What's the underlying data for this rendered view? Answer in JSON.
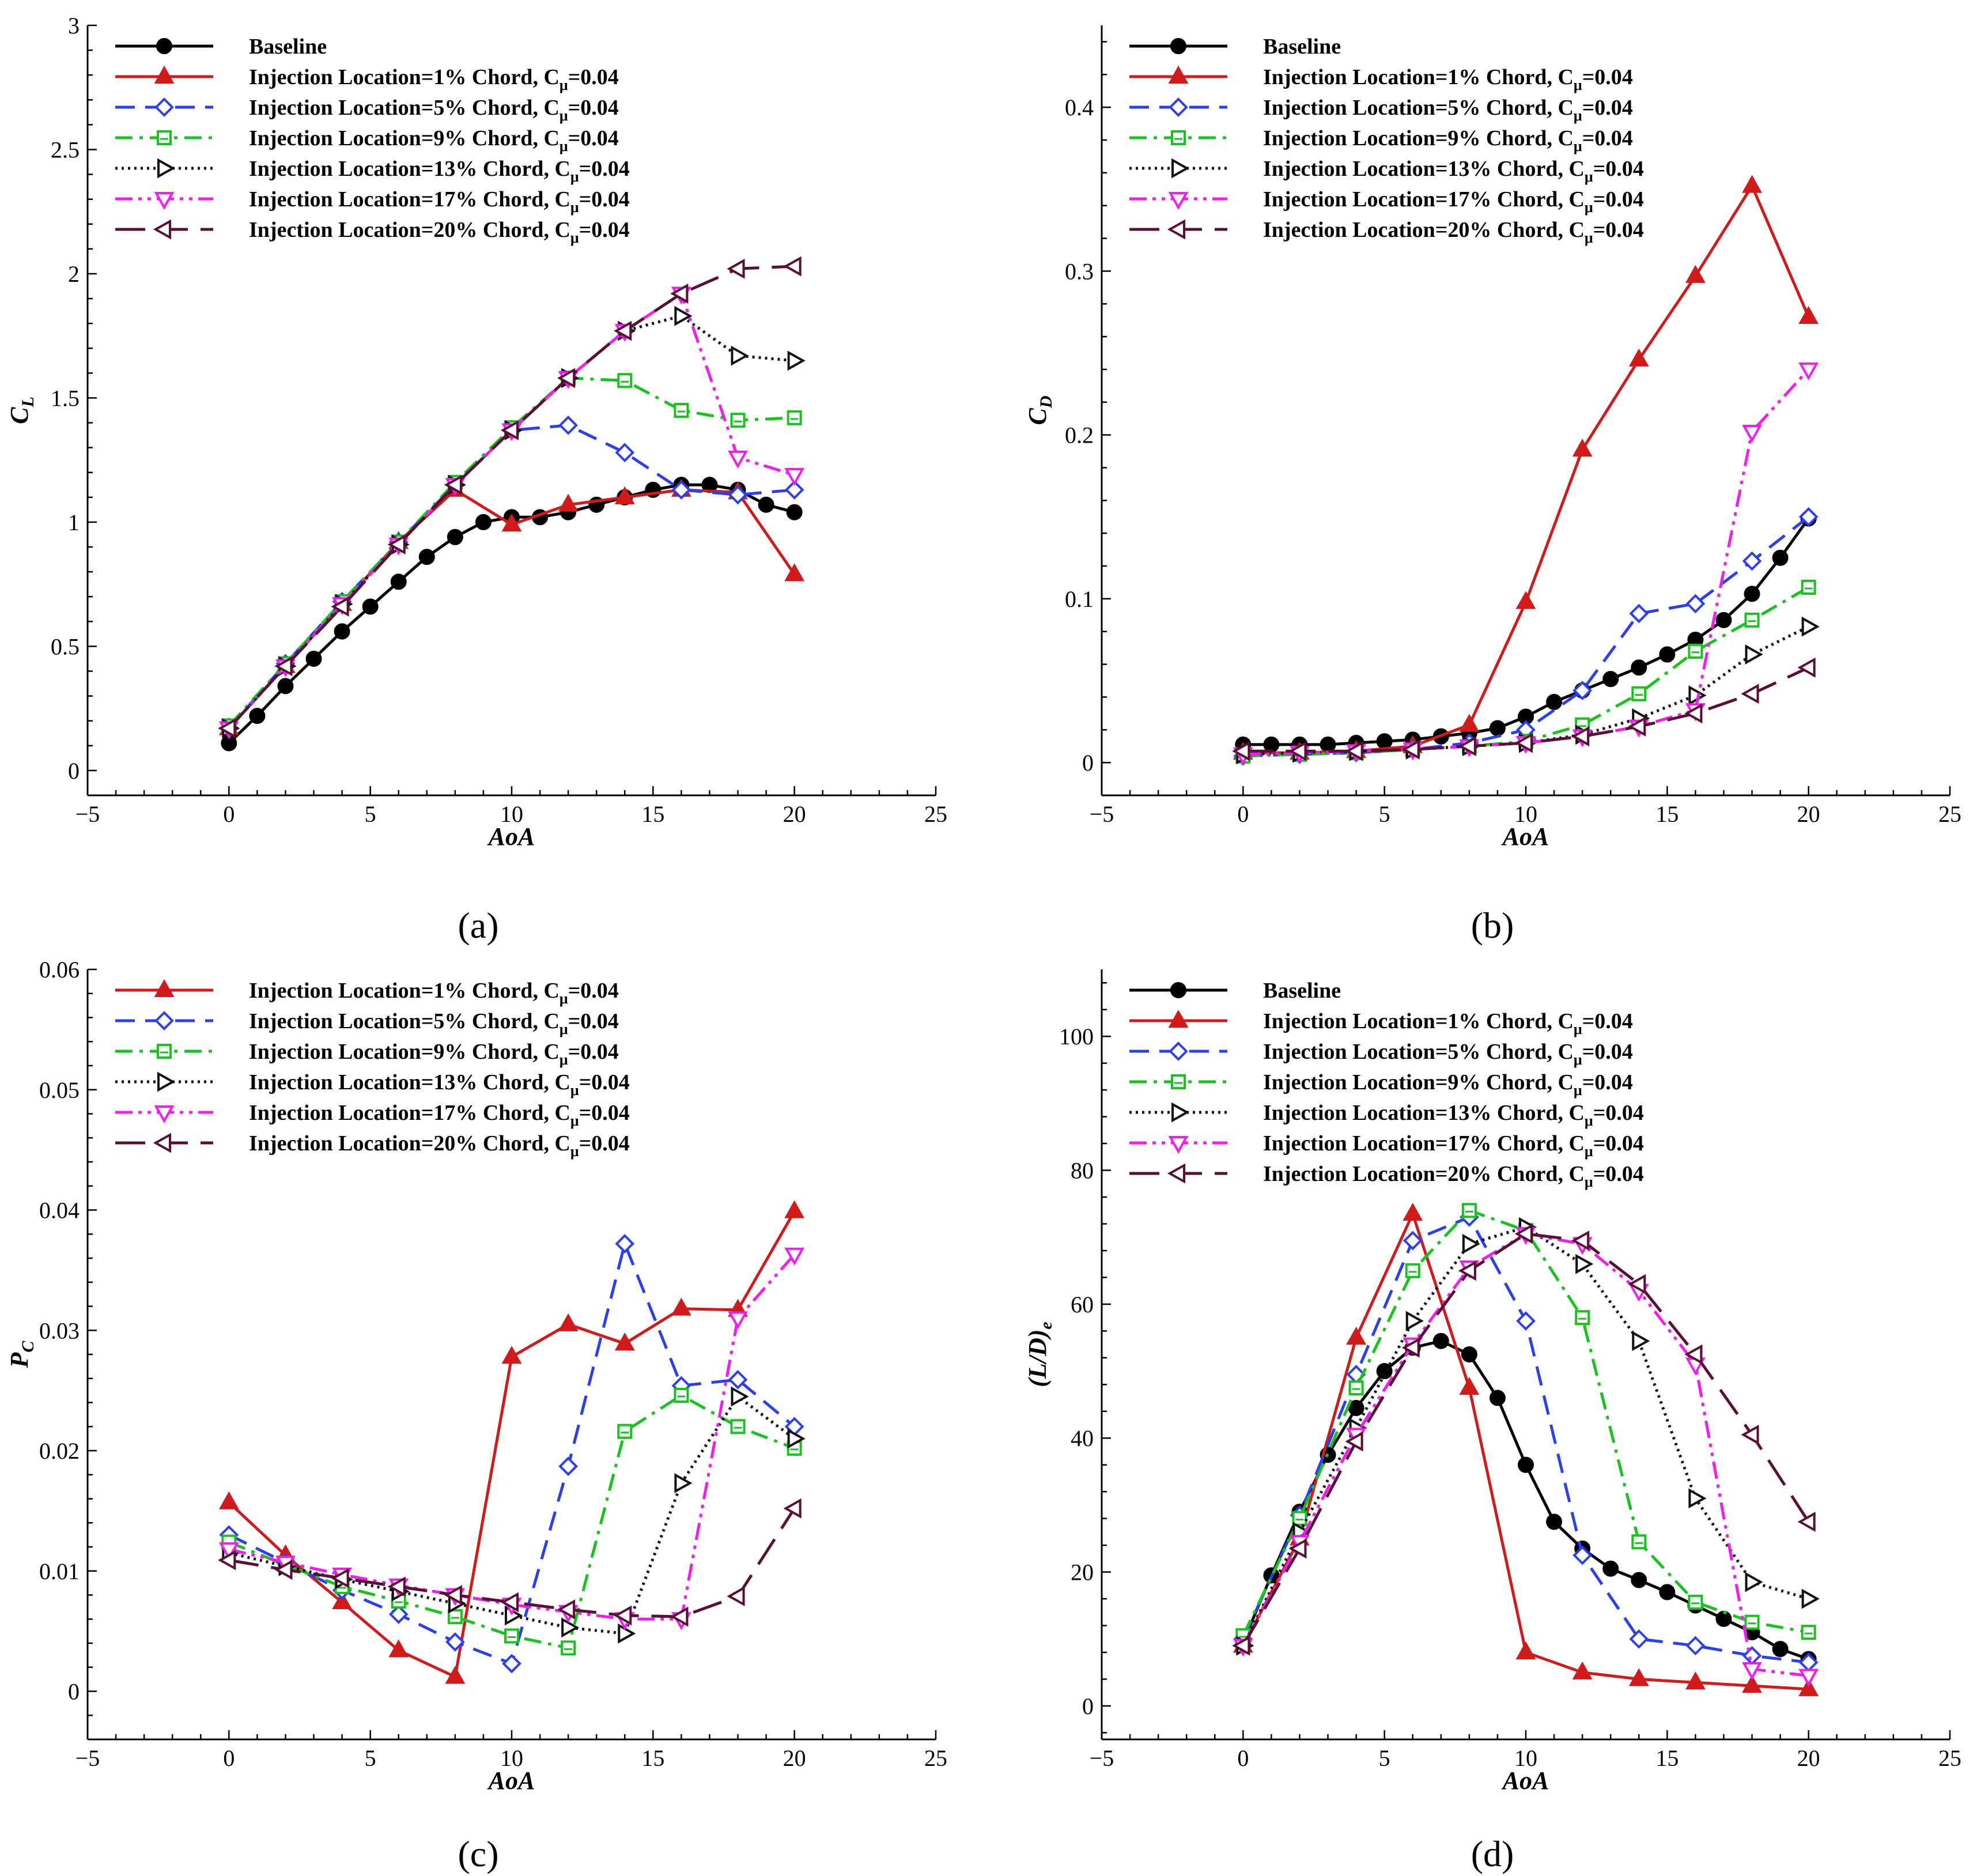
{
  "figure": {
    "panels": [
      {
        "id": "a",
        "caption": "(a)",
        "ylabel": "C",
        "ylabel_sub": "L",
        "ylabel_tail": ""
      },
      {
        "id": "b",
        "caption": "(b)",
        "ylabel": "C",
        "ylabel_sub": "D",
        "ylabel_tail": ""
      },
      {
        "id": "c",
        "caption": "(c)",
        "ylabel": "P",
        "ylabel_sub": "C",
        "ylabel_tail": ""
      },
      {
        "id": "d",
        "caption": "(d)",
        "ylabel": "(L/D)",
        "ylabel_sub": "e",
        "ylabel_tail": ""
      }
    ]
  },
  "series_styles": {
    "baseline": {
      "label_main": "Baseline",
      "label_sub": "",
      "label_tail": "",
      "color": "#000000",
      "dash": "",
      "marker": "circle-filled"
    },
    "inj1": {
      "label_main": "Injection Location=1% Chord, C",
      "label_sub": "μ",
      "label_tail": "=0.04",
      "color": "#d11a1a",
      "dash": "",
      "marker": "triangle-up-filled"
    },
    "inj5": {
      "label_main": "Injection Location=5% Chord, C",
      "label_sub": "μ",
      "label_tail": "=0.04",
      "color": "#2a3ff0",
      "dash": "dash",
      "marker": "diamond-open"
    },
    "inj9": {
      "label_main": "Injection Location=9% Chord, C",
      "label_sub": "μ",
      "label_tail": "=0.04",
      "color": "#16c41d",
      "dash": "dashdot",
      "marker": "square-open"
    },
    "inj13": {
      "label_main": "Injection Location=13% Chord, C",
      "label_sub": "μ",
      "label_tail": "=0.04",
      "color": "#111111",
      "dash": "dot",
      "marker": "triangle-right-open"
    },
    "inj17": {
      "label_main": "Injection Location=17% Chord, C",
      "label_sub": "μ",
      "label_tail": "=0.04",
      "color": "#f21cf2",
      "dash": "dashdotdot",
      "marker": "triangle-down-open"
    },
    "inj20": {
      "label_main": "Injection Location=20% Chord, C",
      "label_sub": "μ",
      "label_tail": "=0.04",
      "color": "#5b0d33",
      "dash": "longdash",
      "marker": "triangle-left-open"
    }
  },
  "chart_data": [
    {
      "type": "line",
      "panel": "a",
      "xlabel": "AoA",
      "ylabel": "C_L",
      "xlim": [
        -5,
        25
      ],
      "ylim": [
        -0.1,
        3
      ],
      "xticks": [
        -5,
        0,
        5,
        10,
        15,
        20,
        25
      ],
      "xtick_labels": [
        "−5",
        "0",
        "5",
        "10",
        "15",
        "20",
        "25"
      ],
      "yticks": [
        0,
        0.5,
        1,
        1.5,
        2,
        2.5,
        3
      ],
      "ytick_labels": [
        "0",
        "0.5",
        "1",
        "1.5",
        "2",
        "2.5",
        "3"
      ],
      "legend": [
        "baseline",
        "inj1",
        "inj5",
        "inj9",
        "inj13",
        "inj17",
        "inj20"
      ],
      "series": [
        {
          "key": "baseline",
          "x": [
            0,
            1,
            2,
            3,
            4,
            5,
            6,
            7,
            8,
            9,
            10,
            11,
            12,
            13,
            14,
            15,
            16,
            17,
            18,
            19,
            20
          ],
          "y": [
            0.11,
            0.22,
            0.34,
            0.45,
            0.56,
            0.66,
            0.76,
            0.86,
            0.94,
            1.0,
            1.02,
            1.02,
            1.04,
            1.07,
            1.1,
            1.13,
            1.15,
            1.15,
            1.13,
            1.07,
            1.04
          ]
        },
        {
          "key": "inj1",
          "x": [
            0,
            2,
            4,
            6,
            8,
            10,
            12,
            14,
            16,
            18,
            20
          ],
          "y": [
            0.17,
            0.42,
            0.67,
            0.92,
            1.13,
            0.99,
            1.07,
            1.1,
            1.13,
            1.12,
            0.79
          ]
        },
        {
          "key": "inj5",
          "x": [
            0,
            2,
            4,
            6,
            8,
            10,
            12,
            14,
            16,
            18,
            20
          ],
          "y": [
            0.17,
            0.43,
            0.68,
            0.92,
            1.15,
            1.37,
            1.39,
            1.28,
            1.13,
            1.11,
            1.13
          ]
        },
        {
          "key": "inj9",
          "x": [
            0,
            2,
            4,
            6,
            8,
            10,
            12,
            14,
            16,
            18,
            20
          ],
          "y": [
            0.18,
            0.43,
            0.68,
            0.92,
            1.16,
            1.38,
            1.58,
            1.57,
            1.45,
            1.41,
            1.42
          ]
        },
        {
          "key": "inj13",
          "x": [
            0,
            2,
            4,
            6,
            8,
            10,
            12,
            14,
            16,
            18,
            20
          ],
          "y": [
            0.17,
            0.42,
            0.67,
            0.91,
            1.15,
            1.37,
            1.58,
            1.77,
            1.83,
            1.67,
            1.65
          ]
        },
        {
          "key": "inj17",
          "x": [
            0,
            2,
            4,
            6,
            8,
            10,
            12,
            14,
            16,
            18,
            20
          ],
          "y": [
            0.17,
            0.42,
            0.67,
            0.91,
            1.15,
            1.37,
            1.58,
            1.77,
            1.92,
            1.26,
            1.19
          ]
        },
        {
          "key": "inj20",
          "x": [
            0,
            2,
            4,
            6,
            8,
            10,
            12,
            14,
            16,
            18,
            20
          ],
          "y": [
            0.17,
            0.42,
            0.66,
            0.91,
            1.15,
            1.37,
            1.58,
            1.77,
            1.92,
            2.02,
            2.03
          ]
        }
      ]
    },
    {
      "type": "line",
      "panel": "b",
      "xlabel": "AoA",
      "ylabel": "C_D",
      "xlim": [
        -5,
        25
      ],
      "ylim": [
        -0.02,
        0.45
      ],
      "xticks": [
        -5,
        0,
        5,
        10,
        15,
        20,
        25
      ],
      "xtick_labels": [
        "−5",
        "0",
        "5",
        "10",
        "15",
        "20",
        "25"
      ],
      "yticks": [
        0,
        0.1,
        0.2,
        0.3,
        0.4
      ],
      "ytick_labels": [
        "0",
        "0.1",
        "0.2",
        "0.3",
        "0.4"
      ],
      "legend": [
        "baseline",
        "inj1",
        "inj5",
        "inj9",
        "inj13",
        "inj17",
        "inj20"
      ],
      "series": [
        {
          "key": "baseline",
          "x": [
            0,
            1,
            2,
            3,
            4,
            5,
            6,
            7,
            8,
            9,
            10,
            11,
            12,
            13,
            14,
            15,
            16,
            17,
            18,
            19,
            20
          ],
          "y": [
            0.011,
            0.011,
            0.011,
            0.011,
            0.012,
            0.013,
            0.014,
            0.016,
            0.018,
            0.021,
            0.028,
            0.037,
            0.044,
            0.051,
            0.058,
            0.066,
            0.075,
            0.087,
            0.103,
            0.125,
            0.149
          ]
        },
        {
          "key": "inj1",
          "x": [
            0,
            2,
            4,
            6,
            8,
            10,
            12,
            14,
            16,
            18,
            20
          ],
          "y": [
            0.006,
            0.006,
            0.007,
            0.01,
            0.023,
            0.098,
            0.191,
            0.246,
            0.297,
            0.352,
            0.272
          ]
        },
        {
          "key": "inj5",
          "x": [
            0,
            2,
            4,
            6,
            8,
            10,
            12,
            14,
            16,
            18,
            20
          ],
          "y": [
            0.004,
            0.005,
            0.006,
            0.008,
            0.012,
            0.02,
            0.044,
            0.091,
            0.097,
            0.123,
            0.15
          ]
        },
        {
          "key": "inj9",
          "x": [
            0,
            2,
            4,
            6,
            8,
            10,
            12,
            14,
            16,
            18,
            20
          ],
          "y": [
            0.004,
            0.005,
            0.006,
            0.008,
            0.01,
            0.013,
            0.023,
            0.042,
            0.068,
            0.087,
            0.107
          ]
        },
        {
          "key": "inj13",
          "x": [
            0,
            2,
            4,
            6,
            8,
            10,
            12,
            14,
            16,
            18,
            20
          ],
          "y": [
            0.005,
            0.006,
            0.007,
            0.008,
            0.01,
            0.012,
            0.017,
            0.027,
            0.041,
            0.066,
            0.083
          ]
        },
        {
          "key": "inj17",
          "x": [
            0,
            2,
            4,
            6,
            8,
            10,
            12,
            14,
            16,
            18,
            20
          ],
          "y": [
            0.005,
            0.006,
            0.007,
            0.008,
            0.01,
            0.012,
            0.016,
            0.022,
            0.032,
            0.202,
            0.24
          ]
        },
        {
          "key": "inj20",
          "x": [
            0,
            2,
            4,
            6,
            8,
            10,
            12,
            14,
            16,
            18,
            20
          ],
          "y": [
            0.007,
            0.007,
            0.007,
            0.008,
            0.01,
            0.012,
            0.016,
            0.022,
            0.03,
            0.042,
            0.058
          ]
        }
      ]
    },
    {
      "type": "line",
      "panel": "c",
      "xlabel": "AoA",
      "ylabel": "P_C",
      "xlim": [
        -5,
        25
      ],
      "ylim": [
        -0.004,
        0.06
      ],
      "xticks": [
        -5,
        0,
        5,
        10,
        15,
        20,
        25
      ],
      "xtick_labels": [
        "−5",
        "0",
        "5",
        "10",
        "15",
        "20",
        "25"
      ],
      "yticks": [
        0,
        0.01,
        0.02,
        0.03,
        0.04,
        0.05,
        0.06
      ],
      "ytick_labels": [
        "0",
        "0.01",
        "0.02",
        "0.03",
        "0.04",
        "0.05",
        "0.06"
      ],
      "legend": [
        "inj1",
        "inj5",
        "inj9",
        "inj13",
        "inj17",
        "inj20"
      ],
      "series": [
        {
          "key": "inj1",
          "x": [
            0,
            2,
            4,
            6,
            8,
            10,
            12,
            14,
            16,
            18,
            20
          ],
          "y": [
            0.0157,
            0.0113,
            0.0074,
            0.0034,
            0.0012,
            0.0278,
            0.0305,
            0.0289,
            0.0318,
            0.0317,
            0.0399
          ]
        },
        {
          "key": "inj5",
          "x": [
            0,
            2,
            4,
            6,
            8,
            10,
            12,
            14,
            16,
            18,
            20
          ],
          "y": [
            0.013,
            0.0107,
            0.0084,
            0.0064,
            0.0041,
            0.0023,
            0.0187,
            0.0372,
            0.0254,
            0.0259,
            0.022
          ]
        },
        {
          "key": "inj9",
          "x": [
            0,
            2,
            4,
            6,
            8,
            10,
            12,
            14,
            16,
            18,
            20
          ],
          "y": [
            0.0124,
            0.0105,
            0.0087,
            0.0075,
            0.0062,
            0.0046,
            0.0036,
            0.0216,
            0.0246,
            0.022,
            0.0202
          ]
        },
        {
          "key": "inj13",
          "x": [
            0,
            2,
            4,
            6,
            8,
            10,
            12,
            14,
            16,
            18,
            20
          ],
          "y": [
            0.0115,
            0.0104,
            0.0093,
            0.0083,
            0.0073,
            0.0063,
            0.0053,
            0.0048,
            0.0173,
            0.0245,
            0.021
          ]
        },
        {
          "key": "inj17",
          "x": [
            0,
            2,
            4,
            6,
            8,
            10,
            12,
            14,
            16,
            18,
            20
          ],
          "y": [
            0.0118,
            0.0107,
            0.0097,
            0.0088,
            0.008,
            0.0072,
            0.0066,
            0.006,
            0.006,
            0.031,
            0.0363
          ]
        },
        {
          "key": "inj20",
          "x": [
            0,
            2,
            4,
            6,
            8,
            10,
            12,
            14,
            16,
            18,
            20
          ],
          "y": [
            0.0109,
            0.0101,
            0.0094,
            0.0087,
            0.008,
            0.0074,
            0.0068,
            0.0063,
            0.0062,
            0.0079,
            0.0152
          ]
        }
      ]
    },
    {
      "type": "line",
      "panel": "d",
      "xlabel": "AoA",
      "ylabel": "(L/D)_e",
      "xlim": [
        -5,
        25
      ],
      "ylim": [
        -5,
        110
      ],
      "xticks": [
        -5,
        0,
        5,
        10,
        15,
        20,
        25
      ],
      "xtick_labels": [
        "−5",
        "0",
        "5",
        "10",
        "15",
        "20",
        "25"
      ],
      "yticks": [
        0,
        20,
        40,
        60,
        80,
        100
      ],
      "ytick_labels": [
        "0",
        "20",
        "40",
        "60",
        "80",
        "100"
      ],
      "legend": [
        "baseline",
        "inj1",
        "inj5",
        "inj9",
        "inj13",
        "inj17",
        "inj20"
      ],
      "series": [
        {
          "key": "baseline",
          "x": [
            0,
            1,
            2,
            3,
            4,
            5,
            6,
            7,
            8,
            9,
            10,
            11,
            12,
            13,
            14,
            15,
            16,
            17,
            18,
            19,
            20
          ],
          "y": [
            9.5,
            19.5,
            29,
            37.5,
            44.5,
            50,
            53.5,
            54.5,
            52.5,
            46,
            36,
            27.5,
            23.5,
            20.5,
            18.8,
            17,
            15,
            13,
            11,
            8.5,
            7
          ]
        },
        {
          "key": "inj1",
          "x": [
            0,
            2,
            4,
            6,
            8,
            10,
            12,
            14,
            16,
            18,
            20
          ],
          "y": [
            9,
            25,
            55,
            73.5,
            47.5,
            8,
            5,
            4,
            3.5,
            3,
            2.5
          ]
        },
        {
          "key": "inj5",
          "x": [
            0,
            2,
            4,
            6,
            8,
            10,
            12,
            14,
            16,
            18,
            20
          ],
          "y": [
            10,
            28.5,
            49.5,
            69.5,
            73,
            57.5,
            22.5,
            10,
            9,
            7.5,
            6.5
          ]
        },
        {
          "key": "inj9",
          "x": [
            0,
            2,
            4,
            6,
            8,
            10,
            12,
            14,
            16,
            18,
            20
          ],
          "y": [
            10.5,
            28,
            47.5,
            65,
            74,
            71,
            58,
            24.5,
            15.5,
            12.5,
            11
          ]
        },
        {
          "key": "inj13",
          "x": [
            0,
            2,
            4,
            6,
            8,
            10,
            12,
            14,
            16,
            18,
            20
          ],
          "y": [
            9,
            26,
            41.5,
            57.5,
            69,
            71.5,
            66,
            54.5,
            31,
            18.5,
            16
          ]
        },
        {
          "key": "inj17",
          "x": [
            0,
            2,
            4,
            6,
            8,
            10,
            12,
            14,
            16,
            18,
            20
          ],
          "y": [
            9,
            24.5,
            40.5,
            54,
            65.5,
            70.5,
            69,
            62,
            51,
            5.5,
            4.5
          ]
        },
        {
          "key": "inj20",
          "x": [
            0,
            2,
            4,
            6,
            8,
            10,
            12,
            14,
            16,
            18,
            20
          ],
          "y": [
            9,
            23.5,
            39.5,
            53.5,
            65,
            70.5,
            69.5,
            63,
            52.5,
            40.5,
            27.5
          ]
        }
      ]
    }
  ]
}
